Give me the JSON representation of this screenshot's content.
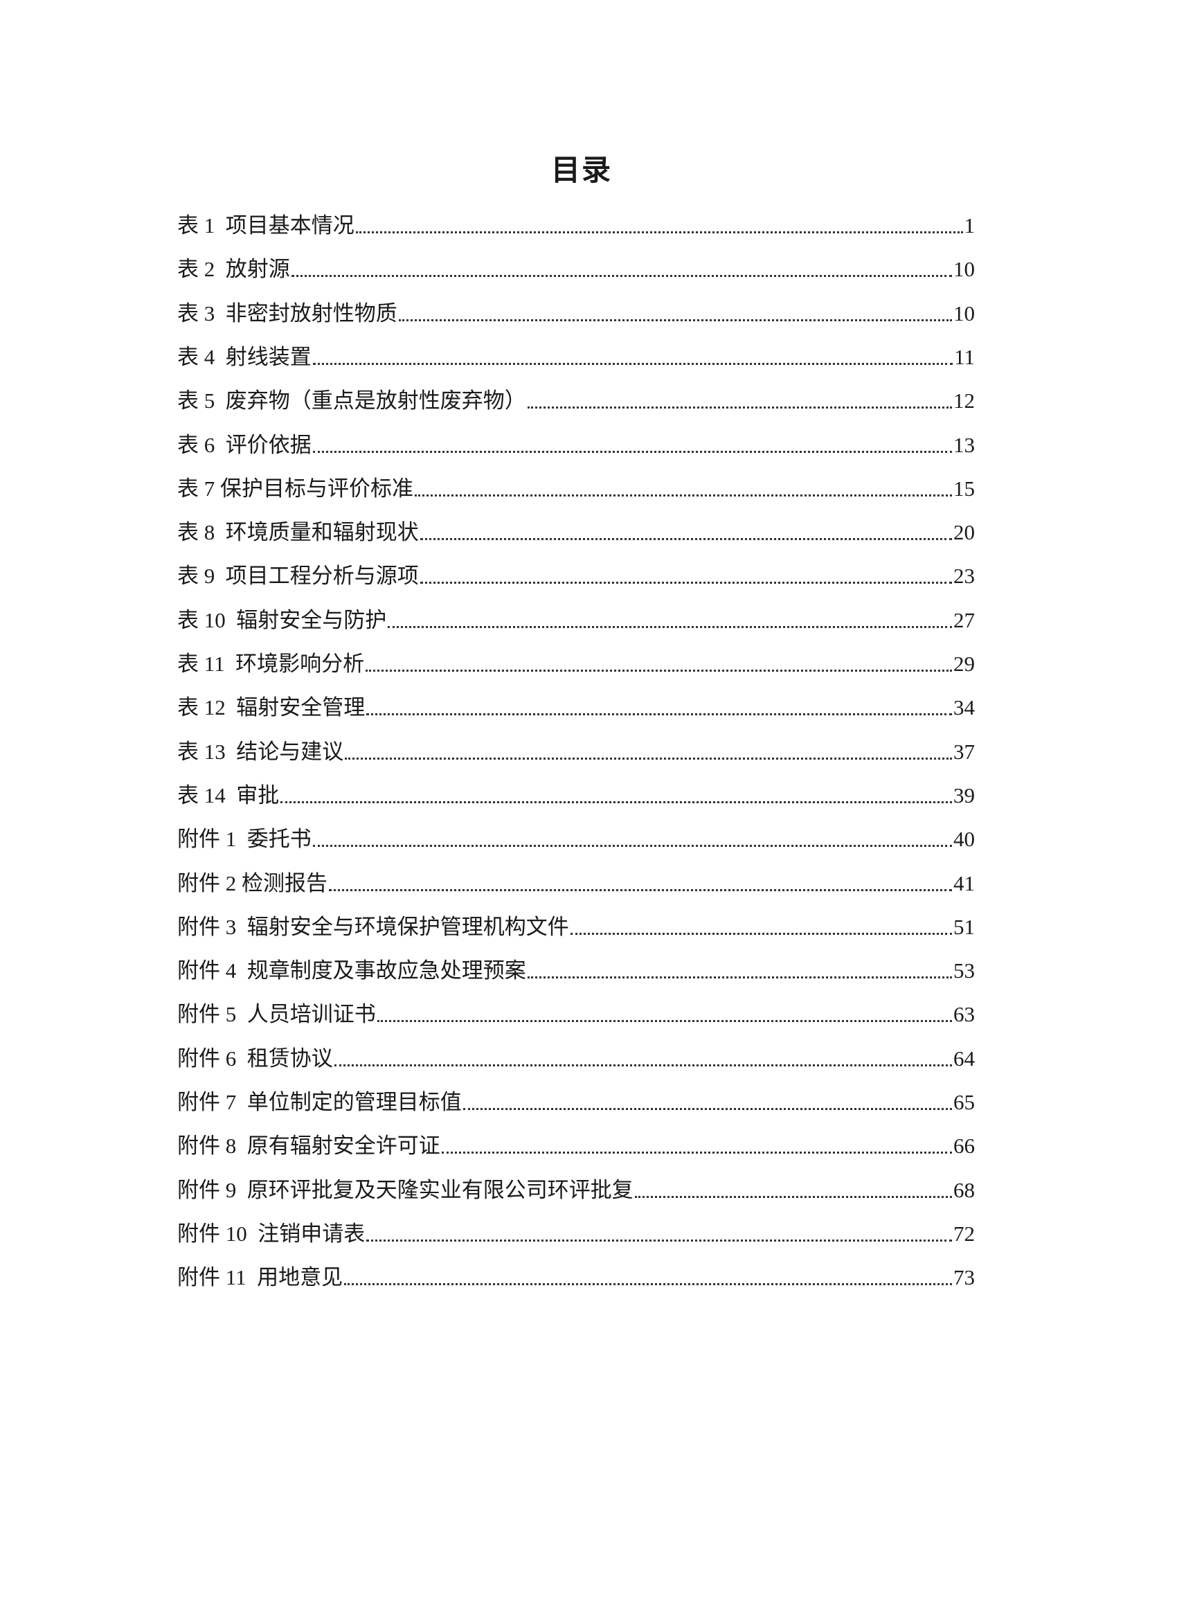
{
  "title": "目录",
  "entries": [
    {
      "label": "表 1  项目基本情况",
      "page": "1"
    },
    {
      "label": "表 2  放射源",
      "page": "10"
    },
    {
      "label": "表 3  非密封放射性物质",
      "page": "10"
    },
    {
      "label": "表 4  射线装置",
      "page": "11"
    },
    {
      "label": "表 5  废弃物（重点是放射性废弃物）",
      "page": "12"
    },
    {
      "label": "表 6  评价依据",
      "page": "13"
    },
    {
      "label": "表 7 保护目标与评价标准",
      "page": "15"
    },
    {
      "label": "表 8  环境质量和辐射现状",
      "page": "20"
    },
    {
      "label": "表 9  项目工程分析与源项",
      "page": "23"
    },
    {
      "label": "表 10  辐射安全与防护",
      "page": "27"
    },
    {
      "label": "表 11  环境影响分析",
      "page": "29"
    },
    {
      "label": "表 12  辐射安全管理",
      "page": "34"
    },
    {
      "label": "表 13  结论与建议",
      "page": "37"
    },
    {
      "label": "表 14  审批",
      "page": "39"
    },
    {
      "label": "附件 1  委托书",
      "page": "40"
    },
    {
      "label": "附件 2 检测报告",
      "page": "41"
    },
    {
      "label": "附件 3  辐射安全与环境保护管理机构文件",
      "page": "51"
    },
    {
      "label": "附件 4  规章制度及事故应急处理预案",
      "page": "53"
    },
    {
      "label": "附件 5  人员培训证书",
      "page": "63"
    },
    {
      "label": "附件 6  租赁协议",
      "page": "64"
    },
    {
      "label": "附件 7  单位制定的管理目标值",
      "page": "65"
    },
    {
      "label": "附件 8  原有辐射安全许可证",
      "page": "66"
    },
    {
      "label": "附件 9  原环评批复及天隆实业有限公司环评批复",
      "page": "68"
    },
    {
      "label": "附件 10  注销申请表",
      "page": "72"
    },
    {
      "label": "附件 11  用地意见",
      "page": "73"
    }
  ]
}
